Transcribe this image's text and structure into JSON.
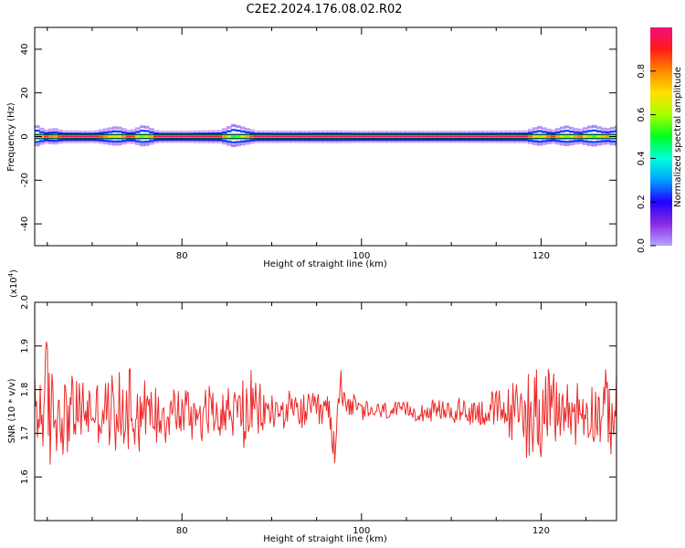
{
  "title": "C2E2.2024.176.08.02.R02",
  "colors": {
    "line": "#ee2a2a",
    "band_core": "#e53a2a",
    "axis": "#000000",
    "colorbar": [
      "#b9a3ff",
      "#8a2be2",
      "#2200ff",
      "#00a0ff",
      "#00ffd8",
      "#00ff22",
      "#a8ff00",
      "#ffe000",
      "#ff8800",
      "#ff1a1a",
      "#f0107a"
    ]
  },
  "chart_data": [
    {
      "type": "heatmap",
      "xlabel": "Height of straight line (km)",
      "ylabel": "Frequency (Hz)",
      "xlim": [
        63.6,
        128.4
      ],
      "ylim": [
        -50,
        50
      ],
      "x_ticks": [
        80,
        100,
        120
      ],
      "y_ticks": [
        -40,
        -20,
        0,
        20,
        40
      ],
      "band_center_hz": 0,
      "band_halfwidth_hz": 1,
      "grid": false,
      "colorbar": {
        "label": "Normalized spectral amplitude",
        "range": [
          0,
          1
        ],
        "ticks": [
          0.0,
          0.2,
          0.4,
          0.6,
          0.8
        ]
      },
      "amplitude_profile": {
        "x": [
          63.6,
          64.5,
          65.5,
          66.5,
          70,
          72.5,
          74,
          75.5,
          77,
          80,
          84,
          85.5,
          88,
          92,
          97,
          100,
          104,
          108,
          112,
          116,
          118,
          119.5,
          121,
          122.5,
          124,
          125.5,
          127,
          128.4
        ],
        "values": [
          0.55,
          0.9,
          0.75,
          0.95,
          0.97,
          0.6,
          0.95,
          0.5,
          0.97,
          0.98,
          0.92,
          0.45,
          0.96,
          0.97,
          0.95,
          0.98,
          0.97,
          0.98,
          0.97,
          0.96,
          0.95,
          0.6,
          0.9,
          0.55,
          0.85,
          0.5,
          0.8,
          0.55
        ]
      }
    },
    {
      "type": "line",
      "xlabel": "Height of straight line (km)",
      "ylabel": "SNR (10 * v/v)",
      "y_multiplier_label": "(x10",
      "y_multiplier_exp": "4",
      "y_multiplier_close": ")",
      "xlim": [
        63.6,
        128.4
      ],
      "ylim": [
        1.5,
        2.0
      ],
      "x_ticks": [
        80,
        100,
        120
      ],
      "y_ticks": [
        1.6,
        1.7,
        1.8,
        1.9,
        2.0
      ],
      "grid": false,
      "series": [
        {
          "x": [
            63.6,
            64.5,
            65,
            66,
            67.5,
            70,
            72,
            73.5,
            74,
            76,
            78,
            80,
            83,
            86,
            87,
            89,
            91,
            93,
            95,
            96.5,
            97,
            97.6,
            98.5,
            100,
            103,
            106,
            109,
            112,
            114,
            116,
            118,
            118.5,
            119.5,
            121,
            123,
            125,
            127,
            128,
            128.4
          ],
          "mean": [
            1.75,
            1.76,
            1.76,
            1.75,
            1.75,
            1.75,
            1.75,
            1.75,
            1.76,
            1.75,
            1.75,
            1.75,
            1.75,
            1.75,
            1.75,
            1.75,
            1.75,
            1.75,
            1.75,
            1.75,
            1.64,
            1.82,
            1.77,
            1.75,
            1.75,
            1.75,
            1.75,
            1.75,
            1.75,
            1.75,
            1.75,
            1.75,
            1.75,
            1.75,
            1.75,
            1.75,
            1.75,
            1.75,
            1.75
          ],
          "amplitude": [
            0.12,
            0.16,
            0.2,
            0.13,
            0.11,
            0.08,
            0.1,
            0.11,
            0.17,
            0.09,
            0.08,
            0.08,
            0.08,
            0.07,
            0.12,
            0.06,
            0.05,
            0.05,
            0.05,
            0.05,
            0.06,
            0.05,
            0.04,
            0.03,
            0.025,
            0.025,
            0.03,
            0.04,
            0.05,
            0.07,
            0.09,
            0.17,
            0.12,
            0.11,
            0.1,
            0.08,
            0.1,
            0.12,
            0.1
          ]
        }
      ]
    }
  ]
}
